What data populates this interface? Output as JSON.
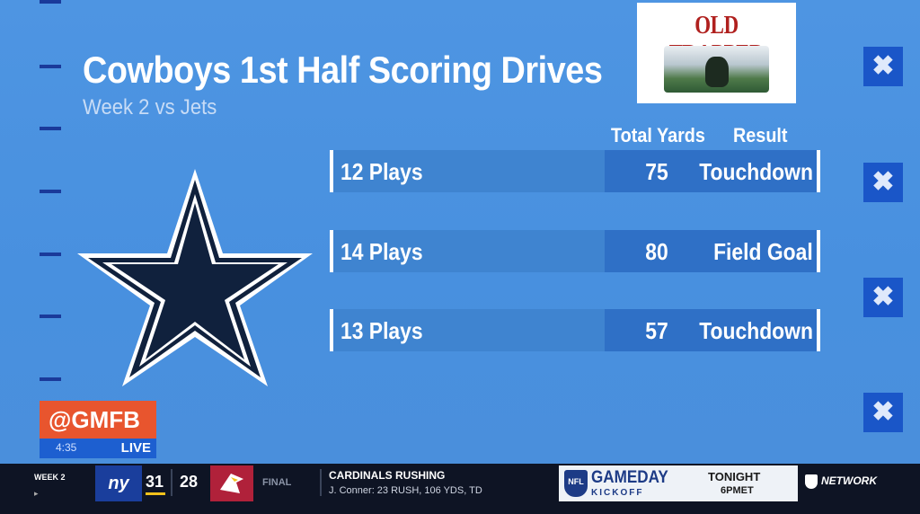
{
  "graphic": {
    "title": "Cowboys 1st Half Scoring Drives",
    "subtitle": "Week 2 vs Jets",
    "sponsor": "OLD TRAPPER",
    "col_yards": "Total Yards",
    "col_result": "Result",
    "drives": [
      {
        "plays": "12 Plays",
        "yards": "75",
        "result": "Touchdown"
      },
      {
        "plays": "14 Plays",
        "yards": "80",
        "result": "Field Goal"
      },
      {
        "plays": "13 Plays",
        "yards": "57",
        "result": "Touchdown"
      }
    ],
    "close_icon": "✖",
    "colors": {
      "field": "#4b92e0",
      "row": "#3f84d0",
      "row_dark": "#2f70c6",
      "accent": "#1a56c8"
    }
  },
  "bug": {
    "handle": "@GMFB",
    "time": "4:35",
    "live": "LIVE"
  },
  "ticker": {
    "week": "WEEK 2",
    "week_sub": "▸",
    "team1": "ny",
    "score1": "31",
    "score2": "28",
    "status": "FINAL",
    "headline": "CARDINALS RUSHING",
    "detail": "J. Conner: 23 RUSH, 106 YDS, TD",
    "promo_logo": "NFL",
    "promo_name": "GAMEDAY",
    "promo_sub": "KICKOFF",
    "promo_when": "TONIGHT",
    "promo_time": "6PMET",
    "network": "NETWORK"
  }
}
